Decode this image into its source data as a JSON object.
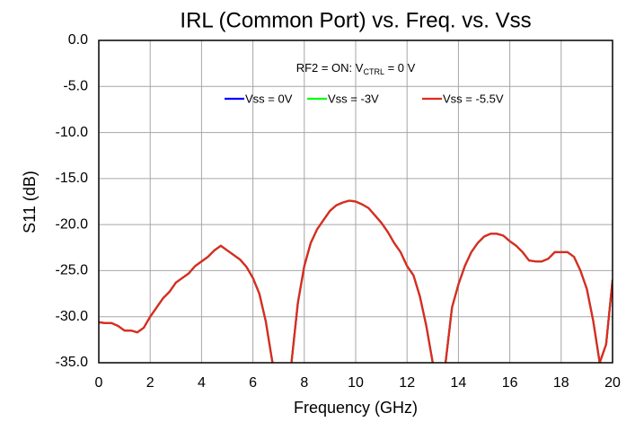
{
  "chart_data": {
    "type": "line",
    "title": "IRL (Common Port) vs. Freq. vs. Vss",
    "annotation": {
      "parts": [
        "RF2 = ON: V",
        "CTRL",
        " = 0 V"
      ]
    },
    "x_label": "Frequency (GHz)",
    "y_label": "S11 (dB)",
    "xlim": [
      0,
      20
    ],
    "ylim": [
      -35,
      0
    ],
    "xticks": [
      0,
      2,
      4,
      6,
      8,
      10,
      12,
      14,
      16,
      18,
      20
    ],
    "yticks": [
      {
        "value": 0,
        "label": "0.0"
      },
      {
        "value": -5,
        "label": "-5.0"
      },
      {
        "value": -10,
        "label": "-10.0"
      },
      {
        "value": -15,
        "label": "-15.0"
      },
      {
        "value": -20,
        "label": "-20.0"
      },
      {
        "value": -25,
        "label": "-25.0"
      },
      {
        "value": -30,
        "label": "-30.0"
      },
      {
        "value": -35,
        "label": "-35.0"
      }
    ],
    "grid": true,
    "x": [
      0,
      0.25,
      0.5,
      0.75,
      1,
      1.25,
      1.5,
      1.75,
      2,
      2.25,
      2.5,
      2.75,
      3,
      3.25,
      3.5,
      3.75,
      4,
      4.25,
      4.5,
      4.75,
      5,
      5.25,
      5.5,
      5.75,
      6,
      6.25,
      6.5,
      6.75,
      7,
      7.25,
      7.5,
      7.75,
      8,
      8.25,
      8.5,
      8.75,
      9,
      9.25,
      9.5,
      9.75,
      10,
      10.25,
      10.5,
      10.75,
      11,
      11.25,
      11.5,
      11.75,
      12,
      12.25,
      12.5,
      12.75,
      13,
      13.25,
      13.5,
      13.75,
      14,
      14.25,
      14.5,
      14.75,
      15,
      15.25,
      15.5,
      15.75,
      16,
      16.25,
      16.5,
      16.75,
      17,
      17.25,
      17.5,
      17.75,
      18,
      18.25,
      18.5,
      18.75,
      19,
      19.25,
      19.5,
      19.75,
      20
    ],
    "series": [
      {
        "name": "Vss = 0V",
        "color": "#0000ff",
        "values": [
          -30.6,
          -30.7,
          -30.7,
          -31.0,
          -31.5,
          -31.5,
          -31.7,
          -31.2,
          -30.0,
          -29.0,
          -28.0,
          -27.3,
          -26.3,
          -25.8,
          -25.3,
          -24.5,
          -24.0,
          -23.5,
          -22.8,
          -22.3,
          -22.8,
          -23.3,
          -23.8,
          -24.6,
          -25.8,
          -27.5,
          -30.5,
          -34.8,
          -40,
          -40,
          -35,
          -28.5,
          -24.5,
          -22.0,
          -20.5,
          -19.5,
          -18.5,
          -17.9,
          -17.6,
          -17.4,
          -17.5,
          -17.8,
          -18.2,
          -19.0,
          -19.8,
          -20.8,
          -22.0,
          -23.0,
          -24.5,
          -25.5,
          -27.8,
          -31,
          -35,
          -40,
          -35,
          -29.0,
          -26.5,
          -24.5,
          -23.0,
          -22.0,
          -21.3,
          -21.0,
          -21.0,
          -21.2,
          -21.8,
          -22.3,
          -23.0,
          -23.9,
          -24.0,
          -24.0,
          -23.7,
          -23.0,
          -23.0,
          -23.0,
          -23.5,
          -25.0,
          -27.0,
          -30.5,
          -35.0,
          -33.0,
          -26.0
        ]
      },
      {
        "name": "Vss = -3V",
        "color": "#00ff00",
        "values": [
          -30.6,
          -30.7,
          -30.7,
          -31.0,
          -31.5,
          -31.5,
          -31.7,
          -31.2,
          -30.0,
          -29.0,
          -28.0,
          -27.3,
          -26.3,
          -25.8,
          -25.3,
          -24.5,
          -24.0,
          -23.5,
          -22.8,
          -22.3,
          -22.8,
          -23.3,
          -23.8,
          -24.6,
          -25.8,
          -27.5,
          -30.5,
          -34.8,
          -40,
          -40,
          -35,
          -28.5,
          -24.5,
          -22.0,
          -20.5,
          -19.5,
          -18.5,
          -17.9,
          -17.6,
          -17.4,
          -17.5,
          -17.8,
          -18.2,
          -19.0,
          -19.8,
          -20.8,
          -22.0,
          -23.0,
          -24.5,
          -25.5,
          -27.8,
          -31,
          -35,
          -40,
          -35,
          -29.0,
          -26.5,
          -24.5,
          -23.0,
          -22.0,
          -21.3,
          -21.0,
          -21.0,
          -21.2,
          -21.8,
          -22.3,
          -23.0,
          -23.9,
          -24.0,
          -24.0,
          -23.7,
          -23.0,
          -23.0,
          -23.0,
          -23.5,
          -25.0,
          -27.0,
          -30.5,
          -35.0,
          -33.0,
          -26.0
        ]
      },
      {
        "name": "Vss = -5.5V",
        "color": "#e8251f",
        "values": [
          -30.6,
          -30.7,
          -30.7,
          -31.0,
          -31.5,
          -31.5,
          -31.7,
          -31.2,
          -30.0,
          -29.0,
          -28.0,
          -27.3,
          -26.3,
          -25.8,
          -25.3,
          -24.5,
          -24.0,
          -23.5,
          -22.8,
          -22.3,
          -22.8,
          -23.3,
          -23.8,
          -24.6,
          -25.8,
          -27.5,
          -30.5,
          -34.8,
          -40,
          -40,
          -35,
          -28.5,
          -24.5,
          -22.0,
          -20.5,
          -19.5,
          -18.5,
          -17.9,
          -17.6,
          -17.4,
          -17.5,
          -17.8,
          -18.2,
          -19.0,
          -19.8,
          -20.8,
          -22.0,
          -23.0,
          -24.5,
          -25.5,
          -27.8,
          -31,
          -35,
          -40,
          -35,
          -29.0,
          -26.5,
          -24.5,
          -23.0,
          -22.0,
          -21.3,
          -21.0,
          -21.0,
          -21.2,
          -21.8,
          -22.3,
          -23.0,
          -23.9,
          -24.0,
          -24.0,
          -23.7,
          -23.0,
          -23.0,
          -23.0,
          -23.5,
          -25.0,
          -27.0,
          -30.5,
          -35.0,
          -33.0,
          -26.0
        ]
      }
    ]
  }
}
